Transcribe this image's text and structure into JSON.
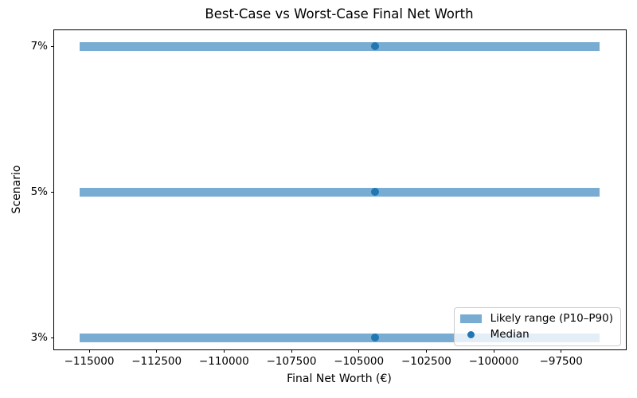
{
  "chart_data": {
    "type": "bar",
    "subtype": "horizontal-range-bars-with-median-points",
    "title": "Best-Case vs Worst-Case Final Net Worth",
    "xlabel": "Final Net Worth (€)",
    "ylabel": "Scenario",
    "categories": [
      "3%",
      "5%",
      "7%"
    ],
    "series": [
      {
        "name": "Likely range (P10–P90)",
        "role": "range",
        "p10": [
          -115350,
          -115350,
          -115350
        ],
        "p90": [
          -96080,
          -96080,
          -96080
        ]
      },
      {
        "name": "Median",
        "role": "point",
        "values": [
          -104400,
          -104400,
          -104400
        ]
      }
    ],
    "xlim": [
      -116300,
      -95100
    ],
    "ylim": [
      -0.08,
      2.11
    ],
    "x_ticks": [
      -115000,
      -112500,
      -110000,
      -107500,
      -105000,
      -102500,
      -100000,
      -97500
    ],
    "x_tick_labels": [
      "−115000",
      "−112500",
      "−110000",
      "−107500",
      "−105000",
      "−102500",
      "−100000",
      "−97500"
    ],
    "grid": false,
    "legend_position": "lower right",
    "colors": {
      "range_bar": "#79acd2",
      "median": "#1f77b4"
    }
  }
}
